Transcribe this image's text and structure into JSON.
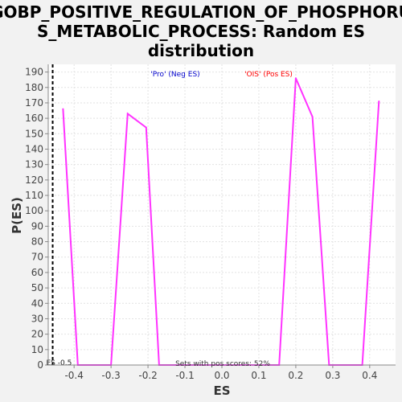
{
  "chart_data": {
    "type": "line",
    "title": "GOBP_POSITIVE_REGULATION_OF_PHOSPHORUS_METABOLIC_PROCESS: Random ES distribution",
    "title_lines": [
      "GOBP_POSITIVE_REGULATION_OF_PHOSPHORU",
      "S_METABOLIC_PROCESS: Random ES",
      "distribution"
    ],
    "xlabel": "ES",
    "ylabel": "P(ES)",
    "xlim": [
      -0.47,
      0.47
    ],
    "ylim": [
      0,
      195
    ],
    "xticks": [
      -0.4,
      -0.3,
      -0.2,
      -0.1,
      0.0,
      0.1,
      0.2,
      0.3,
      0.4
    ],
    "xtick_labels": [
      "-0.4",
      "-0.3",
      "-0.2",
      "-0.1",
      "0.0",
      "0.1",
      "0.2",
      "0.3",
      "0.4"
    ],
    "yticks": [
      0,
      10,
      20,
      30,
      40,
      50,
      60,
      70,
      80,
      90,
      100,
      110,
      120,
      130,
      140,
      150,
      160,
      170,
      180,
      190
    ],
    "grid": true,
    "series": [
      {
        "color": "#ff33ff",
        "x": [
          -0.43,
          -0.39,
          -0.3,
          -0.255,
          -0.205,
          -0.17,
          -0.16,
          0.155,
          0.2,
          0.245,
          0.29,
          0.38,
          0.425
        ],
        "y": [
          166,
          0,
          0,
          163,
          154,
          0,
          0,
          0,
          186,
          161,
          0,
          0,
          171
        ]
      }
    ],
    "actual_es": {
      "x": -0.458,
      "label": "ES -0.5"
    },
    "annotations": {
      "neg_label": "'Pro' (Neg ES)",
      "neg_color": "#0000cc",
      "pos_label": "'OIS' (Pos ES)",
      "pos_color": "#ff0000",
      "bottom_text": "Sets with pos scores: 52%"
    }
  }
}
